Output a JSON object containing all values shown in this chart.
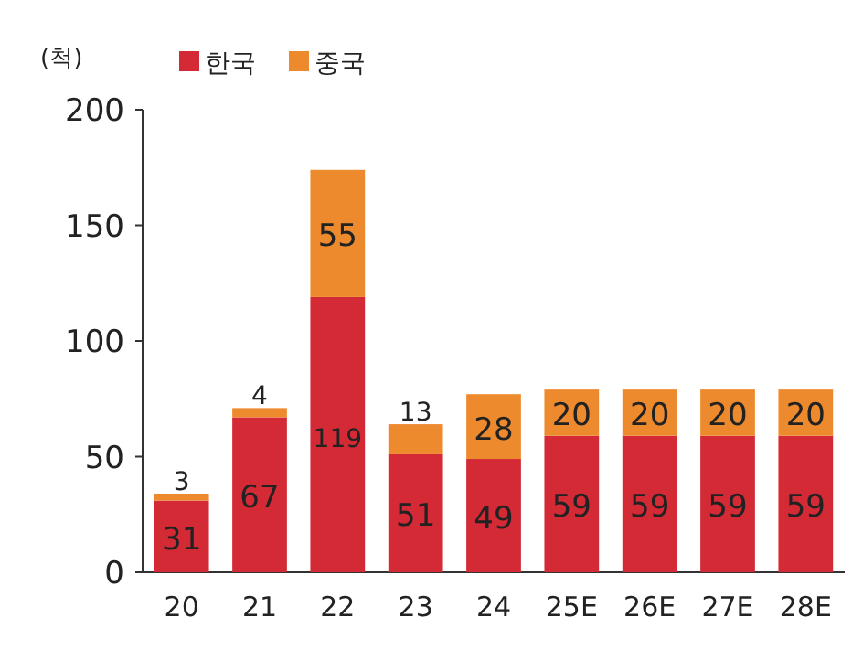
{
  "chart_data": {
    "type": "bar",
    "stacked": true,
    "ylabel": "(척)",
    "legend": "top left",
    "data_labels": true,
    "categories": [
      "20",
      "21",
      "22",
      "23",
      "24",
      "25E",
      "26E",
      "27E",
      "28E"
    ],
    "series": [
      {
        "name": "한국",
        "color": "#d42a35",
        "values": [
          31,
          67,
          119,
          51,
          49,
          59,
          59,
          59,
          59
        ]
      },
      {
        "name": "중국",
        "color": "#ee8a2e",
        "values": [
          3,
          4,
          55,
          13,
          28,
          20,
          20,
          20,
          20
        ]
      }
    ],
    "ylim": [
      0,
      200
    ],
    "yticks": [
      0,
      50,
      100,
      150,
      200
    ]
  }
}
